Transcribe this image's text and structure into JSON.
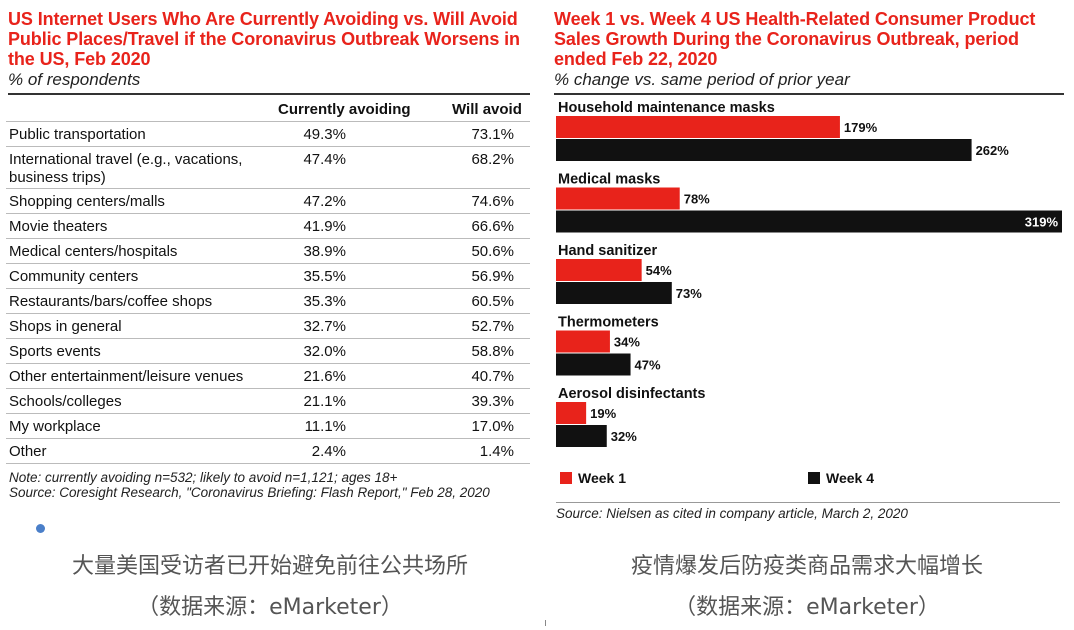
{
  "left": {
    "title": "US Internet Users Who Are Currently Avoiding vs. Will Avoid Public Places/Travel if the Coronavirus Outbreak Worsens in the US, Feb 2020",
    "subtitle": "% of respondents",
    "columns": [
      "Currently avoiding",
      "Will avoid"
    ],
    "note": "Note: currently avoiding n=532; likely to avoid n=1,121; ages 18+",
    "source": "Source: Coresight Research, \"Coronavirus Briefing: Flash Report,\" Feb 28, 2020"
  },
  "chart_data": [
    {
      "type": "table",
      "title": "US Internet Users Who Are Currently Avoiding vs. Will Avoid Public Places/Travel if the Coronavirus Outbreak Worsens in the US, Feb 2020",
      "subtitle": "% of respondents",
      "columns": [
        "Currently avoiding",
        "Will avoid"
      ],
      "rows": [
        {
          "label": "Public transportation",
          "currently_avoiding": "49.3%",
          "will_avoid": "73.1%"
        },
        {
          "label": "International travel (e.g., vacations, business trips)",
          "currently_avoiding": "47.4%",
          "will_avoid": "68.2%"
        },
        {
          "label": "Shopping centers/malls",
          "currently_avoiding": "47.2%",
          "will_avoid": "74.6%"
        },
        {
          "label": "Movie theaters",
          "currently_avoiding": "41.9%",
          "will_avoid": "66.6%"
        },
        {
          "label": "Medical centers/hospitals",
          "currently_avoiding": "38.9%",
          "will_avoid": "50.6%"
        },
        {
          "label": "Community centers",
          "currently_avoiding": "35.5%",
          "will_avoid": "56.9%"
        },
        {
          "label": "Restaurants/bars/coffee shops",
          "currently_avoiding": "35.3%",
          "will_avoid": "60.5%"
        },
        {
          "label": "Shops in general",
          "currently_avoiding": "32.7%",
          "will_avoid": "52.7%"
        },
        {
          "label": "Sports events",
          "currently_avoiding": "32.0%",
          "will_avoid": "58.8%"
        },
        {
          "label": "Other entertainment/leisure venues",
          "currently_avoiding": "21.6%",
          "will_avoid": "40.7%"
        },
        {
          "label": "Schools/colleges",
          "currently_avoiding": "21.1%",
          "will_avoid": "39.3%"
        },
        {
          "label": "My workplace",
          "currently_avoiding": "11.1%",
          "will_avoid": "17.0%"
        },
        {
          "label": "Other",
          "currently_avoiding": "2.4%",
          "will_avoid": "1.4%"
        }
      ]
    },
    {
      "type": "bar",
      "orientation": "horizontal",
      "title": "Week 1 vs. Week 4 US Health-Related Consumer Product Sales Growth During the Coronavirus Outbreak, period ended Feb 22, 2020",
      "subtitle": "% change vs. same period of prior year",
      "categories": [
        "Household maintenance masks",
        "Medical masks",
        "Hand sanitizer",
        "Thermometers",
        "Aerosol disinfectants"
      ],
      "series": [
        {
          "name": "Week 1",
          "color": "#e8231b",
          "values": [
            179,
            78,
            54,
            34,
            19
          ]
        },
        {
          "name": "Week 4",
          "color": "#111111",
          "values": [
            262,
            319,
            73,
            47,
            32
          ]
        }
      ],
      "value_suffix": "%",
      "legend": "bottom",
      "source": "Source: Nielsen as cited in company article, March 2, 2020"
    }
  ],
  "captions": {
    "left_line1": "大量美国受访者已开始避免前往公共场所",
    "left_line2": "（数据来源：eMarketer）",
    "right_line1": "疫情爆发后防疫类商品需求大幅增长",
    "right_line2": "（数据来源：eMarketer）"
  }
}
